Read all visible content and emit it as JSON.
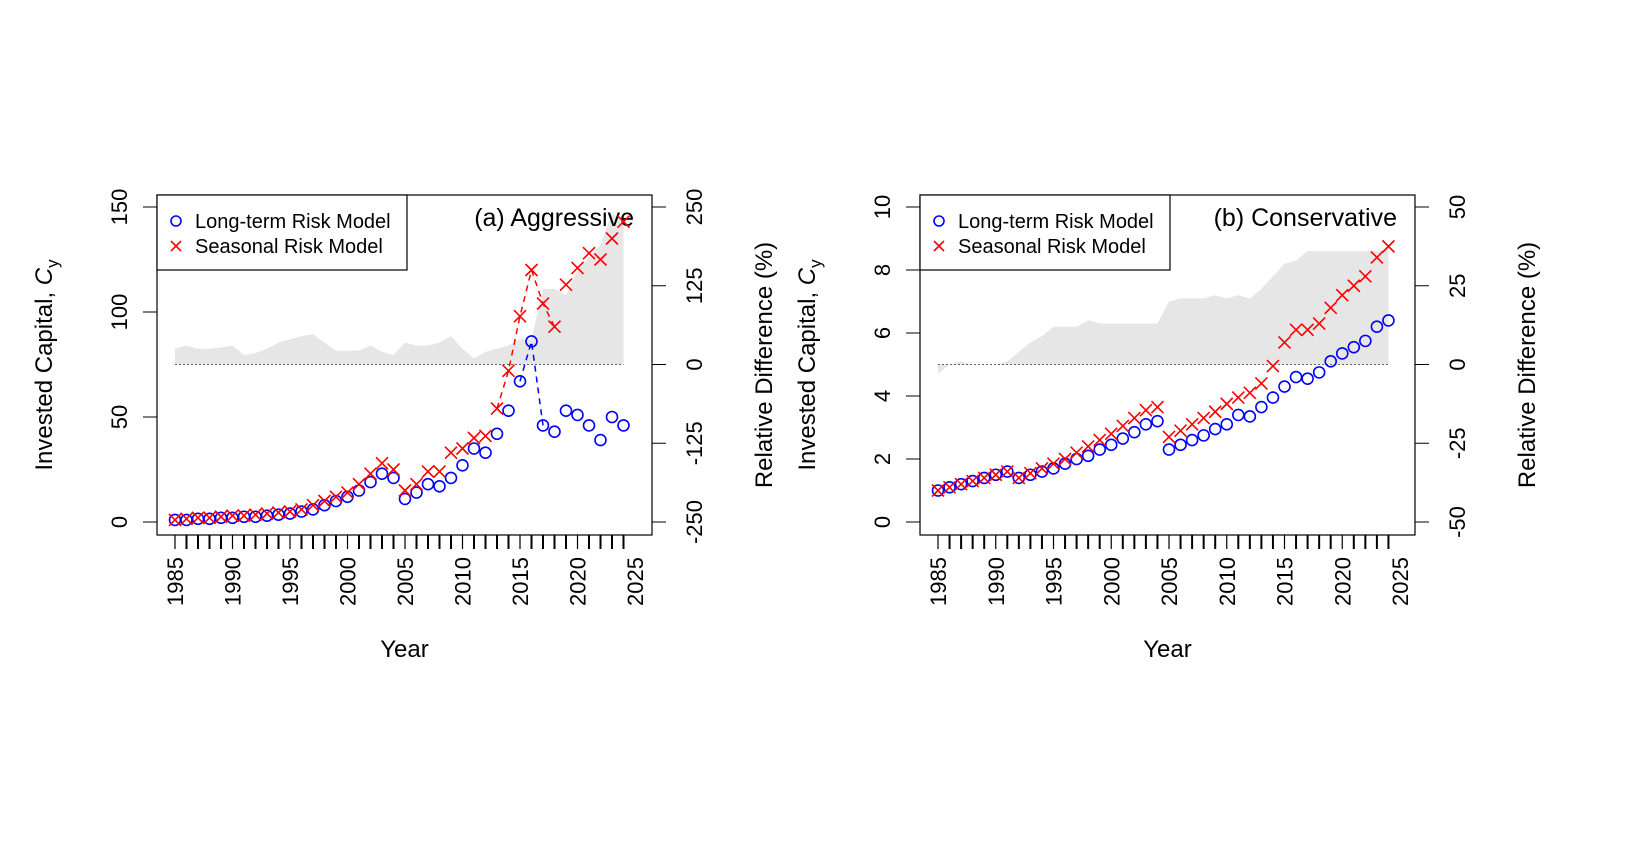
{
  "chart_data": [
    {
      "type": "scatter",
      "title": "(a) Aggressive",
      "xlabel": "Year",
      "ylabel": "Invested Capital, C_y",
      "ylabel_right": "Relative Difference (%)",
      "xlim": [
        1985,
        2025
      ],
      "ylim": [
        0,
        150
      ],
      "ylim_right": [
        -250,
        250
      ],
      "x_ticks": [
        1985,
        1990,
        1995,
        2000,
        2005,
        2010,
        2015,
        2020,
        2025
      ],
      "y_ticks": [
        0,
        50,
        100,
        150
      ],
      "y_ticks_right": [
        -250,
        -125,
        0,
        125,
        250
      ],
      "legend": "top-left",
      "grid": false,
      "x": [
        1985,
        1986,
        1987,
        1988,
        1989,
        1990,
        1991,
        1992,
        1993,
        1994,
        1995,
        1996,
        1997,
        1998,
        1999,
        2000,
        2001,
        2002,
        2003,
        2004,
        2005,
        2006,
        2007,
        2008,
        2009,
        2010,
        2011,
        2012,
        2013,
        2014,
        2015,
        2016,
        2017,
        2018,
        2019,
        2020,
        2021,
        2022,
        2023,
        2024
      ],
      "series": [
        {
          "name": "Long-term Risk Model",
          "marker": "circle",
          "color": "#0000ff",
          "values": [
            1,
            1,
            1.5,
            1.5,
            2,
            2,
            2.5,
            2.5,
            3,
            3.5,
            4,
            5,
            6,
            8,
            10,
            12,
            15,
            19,
            23,
            21,
            11,
            14,
            18,
            17,
            21,
            27,
            35,
            33,
            42,
            53,
            67,
            86,
            46,
            43,
            53,
            51,
            46,
            39,
            50,
            46
          ]
        },
        {
          "name": "Seasonal Risk Model",
          "marker": "x",
          "color": "#ff0000",
          "values": [
            1,
            1.5,
            2,
            2,
            2.5,
            3,
            3,
            3.5,
            4,
            4.5,
            5,
            6,
            8,
            10,
            12,
            14,
            18,
            23,
            28,
            25,
            15,
            18,
            24,
            24,
            33,
            35,
            40,
            41,
            54,
            72,
            98,
            120,
            104,
            93,
            113,
            121,
            128,
            125,
            135,
            143
          ]
        },
        {
          "axis": "right",
          "type": "area",
          "color": "#e6e6e6",
          "values": [
            25,
            30,
            25,
            25,
            27,
            30,
            15,
            18,
            25,
            35,
            40,
            45,
            48,
            35,
            22,
            22,
            22,
            30,
            20,
            15,
            35,
            30,
            30,
            35,
            45,
            25,
            10,
            20,
            25,
            30,
            40,
            40,
            120,
            120,
            110,
            150,
            170,
            190,
            240,
            225
          ]
        }
      ]
    },
    {
      "type": "scatter",
      "title": "(b) Conservative",
      "xlabel": "Year",
      "ylabel": "Invested Capital, C_y",
      "ylabel_right": "Relative Difference (%)",
      "xlim": [
        1985,
        2025
      ],
      "ylim": [
        0,
        10
      ],
      "ylim_right": [
        -50,
        50
      ],
      "x_ticks": [
        1985,
        1990,
        1995,
        2000,
        2005,
        2010,
        2015,
        2020,
        2025
      ],
      "y_ticks": [
        0,
        2,
        4,
        6,
        8,
        10
      ],
      "y_ticks_right": [
        -50,
        -25,
        0,
        25,
        50
      ],
      "legend": "top-left",
      "grid": false,
      "x": [
        1985,
        1986,
        1987,
        1988,
        1989,
        1990,
        1991,
        1992,
        1993,
        1994,
        1995,
        1996,
        1997,
        1998,
        1999,
        2000,
        2001,
        2002,
        2003,
        2004,
        2005,
        2006,
        2007,
        2008,
        2009,
        2010,
        2011,
        2012,
        2013,
        2014,
        2015,
        2016,
        2017,
        2018,
        2019,
        2020,
        2021,
        2022,
        2023,
        2024
      ],
      "series": [
        {
          "name": "Long-term Risk Model",
          "marker": "circle",
          "color": "#0000ff",
          "values": [
            1.0,
            1.1,
            1.2,
            1.3,
            1.4,
            1.5,
            1.6,
            1.4,
            1.5,
            1.6,
            1.7,
            1.85,
            2.0,
            2.1,
            2.3,
            2.45,
            2.65,
            2.85,
            3.1,
            3.2,
            2.3,
            2.45,
            2.6,
            2.75,
            2.95,
            3.1,
            3.4,
            3.35,
            3.65,
            3.95,
            4.3,
            4.6,
            4.55,
            4.75,
            5.1,
            5.35,
            5.55,
            5.75,
            6.2,
            6.4
          ]
        },
        {
          "name": "Seasonal Risk Model",
          "marker": "x",
          "color": "#ff0000",
          "values": [
            1.0,
            1.1,
            1.2,
            1.3,
            1.4,
            1.5,
            1.6,
            1.4,
            1.55,
            1.7,
            1.85,
            2.0,
            2.2,
            2.4,
            2.6,
            2.8,
            3.05,
            3.3,
            3.55,
            3.65,
            2.7,
            2.9,
            3.1,
            3.3,
            3.5,
            3.75,
            3.95,
            4.1,
            4.4,
            4.95,
            5.7,
            6.1,
            6.1,
            6.3,
            6.8,
            7.2,
            7.5,
            7.8,
            8.4,
            8.75
          ]
        },
        {
          "axis": "right",
          "type": "area",
          "color": "#e6e6e6",
          "values": [
            -3,
            0,
            1,
            0,
            0,
            0,
            1,
            4,
            7,
            9,
            12,
            12,
            12,
            14,
            13,
            13,
            13,
            13,
            13,
            13,
            20,
            21,
            21,
            21,
            22,
            21,
            22,
            21,
            24,
            28,
            32,
            33,
            36,
            36,
            36,
            36,
            36,
            36,
            36,
            37
          ]
        }
      ]
    }
  ]
}
